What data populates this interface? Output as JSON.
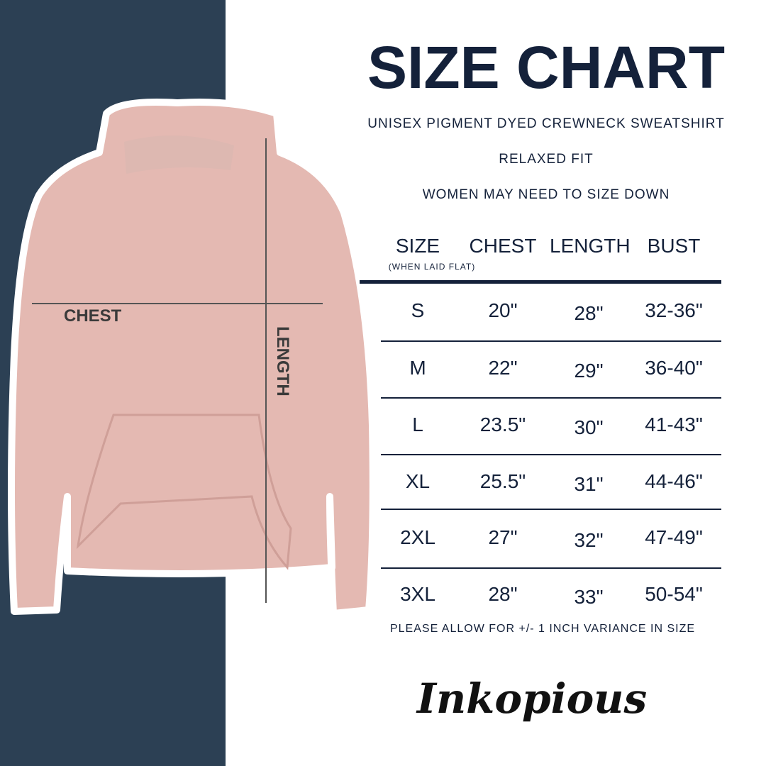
{
  "title": "SIZE CHART",
  "subtitle_lines": [
    "UNISEX PIGMENT DYED CREWNECK SWEATSHIRT",
    "RELAXED FIT",
    "WOMEN MAY NEED TO SIZE DOWN"
  ],
  "table": {
    "headers": [
      "SIZE",
      "CHEST",
      "LENGTH",
      "BUST"
    ],
    "chest_note": "(WHEN LAID FLAT)",
    "rows": [
      [
        "S",
        "20\"",
        "28\"",
        "32-36\""
      ],
      [
        "M",
        "22\"",
        "29\"",
        "36-40\""
      ],
      [
        "L",
        "23.5\"",
        "30\"",
        "41-43\""
      ],
      [
        "XL",
        "25.5\"",
        "31\"",
        "44-46\""
      ],
      [
        "2XL",
        "27\"",
        "32\"",
        "47-49\""
      ],
      [
        "3XL",
        "28\"",
        "33\"",
        "50-54\""
      ]
    ]
  },
  "footnote": "PLEASE ALLOW FOR +/- 1 INCH VARIANCE IN SIZE",
  "garment_labels": {
    "chest": "CHEST",
    "length": "LENGTH"
  },
  "logo_text": "Inkopious",
  "colors": {
    "navy": "#14213a",
    "panel": "#2c4054",
    "hoodie": "#e4b9b2"
  }
}
